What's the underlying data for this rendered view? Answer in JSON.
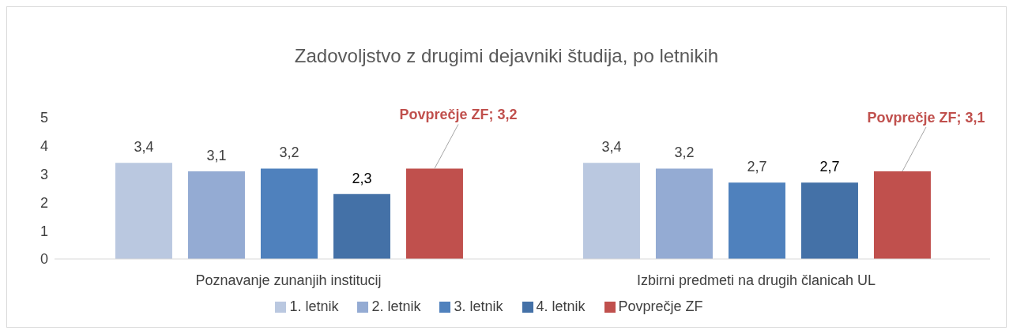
{
  "chart_data": {
    "type": "bar",
    "title": "Zadovoljstvo z drugimi dejavniki študija, po letnikih",
    "categories": [
      "Poznavanje zunanjih institucij",
      "Izbirni predmeti na drugih članicah UL"
    ],
    "series": [
      {
        "name": "1. letnik",
        "color": "#bac8e0",
        "values": [
          3.4,
          3.4
        ],
        "value_labels": [
          "3,4",
          "3,4"
        ]
      },
      {
        "name": "2. letnik",
        "color": "#94abd3",
        "values": [
          3.1,
          3.2
        ],
        "value_labels": [
          "3,1",
          "3,2"
        ]
      },
      {
        "name": "3. letnik",
        "color": "#4f81bd",
        "values": [
          3.2,
          2.7
        ],
        "value_labels": [
          "3,2",
          "2,7"
        ]
      },
      {
        "name": "4. letnik",
        "color": "#4471a7",
        "values": [
          2.3,
          2.7
        ],
        "value_labels": [
          "2,3",
          "2,7"
        ]
      },
      {
        "name": "Povprečje ZF",
        "color": "#c0504d",
        "values": [
          3.2,
          3.1
        ],
        "value_labels": [
          "Povprečje ZF; 3,2",
          "Povprečje ZF; 3,1"
        ]
      }
    ],
    "ylim": [
      0,
      5
    ],
    "yticks": [
      0,
      1,
      2,
      3,
      4,
      5
    ],
    "grid": false,
    "legend": "bottom"
  }
}
